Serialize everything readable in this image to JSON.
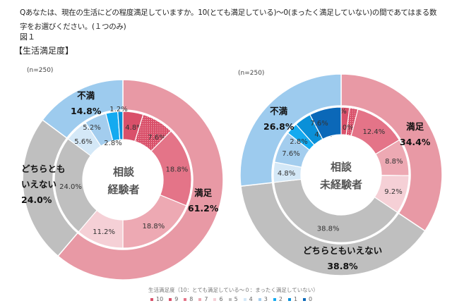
{
  "question": "Qあなたは、現在の生活にどの程度満足していますか。10(とても満足している)～0(まったく満足していない)の間であてはまる数字をお選びください。(１つのみ)",
  "figure_label": "図１",
  "figure_title": "【生活満足度】",
  "chart_data": [
    {
      "type": "pie",
      "subtype": "nested-donut",
      "center_label": [
        "相談",
        "経験者"
      ],
      "n_label": "(n=250)",
      "inner": {
        "categories": [
          "10",
          "9",
          "8",
          "7",
          "6",
          "5",
          "4",
          "3",
          "2",
          "1",
          "0"
        ],
        "values": [
          4.8,
          7.6,
          18.8,
          18.8,
          11.2,
          24.0,
          5.6,
          5.2,
          2.8,
          1.2,
          0.0
        ],
        "labels": [
          "4.8%",
          "7.6%",
          "18.8%",
          "18.8%",
          "11.2%",
          "24.0%",
          "5.6%",
          "5.2%",
          "2.8%",
          "1.2%",
          ""
        ]
      },
      "outer": {
        "categories": [
          "満足",
          "どちらともいえない",
          "不満"
        ],
        "values": [
          61.2,
          24.0,
          14.8
        ],
        "labels": [
          "61.2%",
          "24.0%",
          "14.8%"
        ]
      }
    },
    {
      "type": "pie",
      "subtype": "nested-donut",
      "center_label": [
        "相談",
        "未経験者"
      ],
      "n_label": "(n=250)",
      "inner": {
        "categories": [
          "10",
          "9",
          "8",
          "7",
          "6",
          "5",
          "4",
          "3",
          "2",
          "1",
          "0"
        ],
        "values": [
          2.0,
          2.0,
          12.4,
          8.8,
          9.2,
          38.8,
          4.8,
          7.6,
          2.8,
          4.0,
          7.6
        ],
        "labels": [
          "2.0%",
          "2.0%",
          "12.4%",
          "8.8%",
          "9.2%",
          "38.8%",
          "4.8%",
          "7.6%",
          "2.8%",
          "4.0%",
          "7.6%"
        ]
      },
      "outer": {
        "categories": [
          "満足",
          "どちらともいえない",
          "不満"
        ],
        "values": [
          34.4,
          38.8,
          26.8
        ],
        "labels": [
          "34.4%",
          "38.8%",
          "26.8%"
        ]
      }
    }
  ],
  "legend": {
    "title": "生活満足度（10：とても満足している～０：まったく満足していない）",
    "items": [
      "10",
      "9",
      "8",
      "7",
      "6",
      "5",
      "4",
      "3",
      "2",
      "1",
      "0"
    ]
  },
  "colors": {
    "inner": [
      "#d9506a",
      "#d9506a",
      "#e47488",
      "#eda9b3",
      "#f5d0d6",
      "#bfbfbf",
      "#d4e8f7",
      "#a3cdee",
      "#14aaf0",
      "#0a90d8",
      "#0b68b8"
    ],
    "outer": [
      "#e899a5",
      "#bfbfbf",
      "#9dcbee"
    ]
  }
}
